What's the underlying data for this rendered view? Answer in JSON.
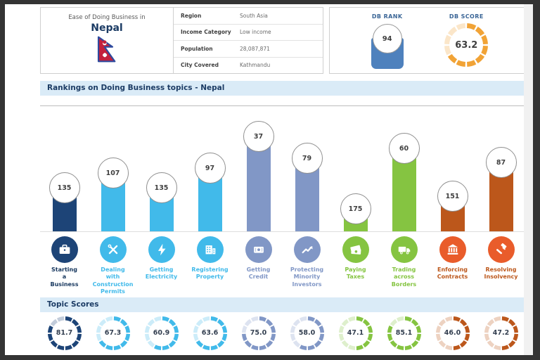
{
  "header": {
    "country_panel": {
      "subtitle": "Ease of Doing Business in",
      "country": "Nepal",
      "flag": "nepal-flag"
    },
    "info_table": {
      "rows": [
        {
          "label": "Region",
          "value": "South Asia"
        },
        {
          "label": "Income Category",
          "value": "Low income"
        },
        {
          "label": "Population",
          "value": "28,087,871"
        },
        {
          "label": "City Covered",
          "value": "Kathmandu"
        }
      ]
    },
    "db_panel": {
      "rank_label": "DB RANK",
      "rank_value": "94",
      "score_label": "DB SCORE",
      "score_value": "63.2",
      "score_pct": 63.2
    }
  },
  "sections": {
    "rankings_title": "Rankings on Doing Business topics - Nepal",
    "topic_scores_title": "Topic Scores"
  },
  "colors": {
    "navy": "#1D4477",
    "cyan": "#41BAEA",
    "steel": "#8197C6",
    "green": "#85C441",
    "rust": "#BC571B",
    "icon_red": "#E95C2B",
    "amber": "#F1A336",
    "rank_blue": "#4E81BD",
    "header_bg": "#DAEBF7",
    "header_text": "#1B3B64"
  },
  "chart_data": {
    "type": "bar",
    "title": "Rankings on Doing Business topics - Nepal",
    "note": "lower rank number = taller bar; rank shown in circle atop each bar",
    "categories": [
      "Starting a Business",
      "Dealing with Construction Permits",
      "Getting Electricity",
      "Registering Property",
      "Getting Credit",
      "Protecting Minority Investors",
      "Paying Taxes",
      "Trading across Borders",
      "Enforcing Contracts",
      "Resolving Insolvency"
    ],
    "series": [
      {
        "name": "DB Rank",
        "values": [
          135,
          107,
          135,
          97,
          37,
          79,
          175,
          60,
          151,
          87
        ]
      },
      {
        "name": "Topic Score",
        "values": [
          81.7,
          67.3,
          60.9,
          63.6,
          75.0,
          58.0,
          47.1,
          85.1,
          46.0,
          47.2
        ]
      }
    ],
    "topics": [
      {
        "name": "starting-a-business",
        "label": "Starting\na\nBusiness",
        "rank": 135,
        "score": 81.7,
        "color": "#1D4477",
        "icon_color": "#1D4477",
        "label_color": "#17375E",
        "icon": "briefcase-icon"
      },
      {
        "name": "dealing-with-construction-permits",
        "label": "Dealing\nwith\nConstruction\nPermits",
        "rank": 107,
        "score": 67.3,
        "color": "#41BAEA",
        "icon_color": "#41BAEA",
        "label_color": "#41BAEA",
        "icon": "tools-icon"
      },
      {
        "name": "getting-electricity",
        "label": "Getting\nElectricity",
        "rank": 135,
        "score": 60.9,
        "color": "#41BAEA",
        "icon_color": "#41BAEA",
        "label_color": "#41BAEA",
        "icon": "lightning-icon"
      },
      {
        "name": "registering-property",
        "label": "Registering\nProperty",
        "rank": 97,
        "score": 63.6,
        "color": "#41BAEA",
        "icon_color": "#41BAEA",
        "label_color": "#41BAEA",
        "icon": "building-icon"
      },
      {
        "name": "getting-credit",
        "label": "Getting\nCredit",
        "rank": 37,
        "score": 75.0,
        "color": "#8197C6",
        "icon_color": "#8197C6",
        "label_color": "#8197C6",
        "icon": "banknote-icon"
      },
      {
        "name": "protecting-minority-investors",
        "label": "Protecting\nMinority\nInvestors",
        "rank": 79,
        "score": 58.0,
        "color": "#8197C6",
        "icon_color": "#8197C6",
        "label_color": "#8197C6",
        "icon": "trend-chart-icon"
      },
      {
        "name": "paying-taxes",
        "label": "Paying\nTaxes",
        "rank": 175,
        "score": 47.1,
        "color": "#85C441",
        "icon_color": "#85C441",
        "label_color": "#85C441",
        "icon": "cash-icon"
      },
      {
        "name": "trading-across-borders",
        "label": "Trading\nacross\nBorders",
        "rank": 60,
        "score": 85.1,
        "color": "#85C441",
        "icon_color": "#85C441",
        "label_color": "#85C441",
        "icon": "truck-icon"
      },
      {
        "name": "enforcing-contracts",
        "label": "Enforcing\nContracts",
        "rank": 151,
        "score": 46.0,
        "color": "#BC571B",
        "icon_color": "#E95C2B",
        "label_color": "#BC571B",
        "icon": "bank-icon"
      },
      {
        "name": "resolving-insolvency",
        "label": "Resolving\nInsolvency",
        "rank": 87,
        "score": 47.2,
        "color": "#BC571B",
        "icon_color": "#E95C2B",
        "label_color": "#BC571B",
        "icon": "gavel-icon"
      }
    ]
  }
}
